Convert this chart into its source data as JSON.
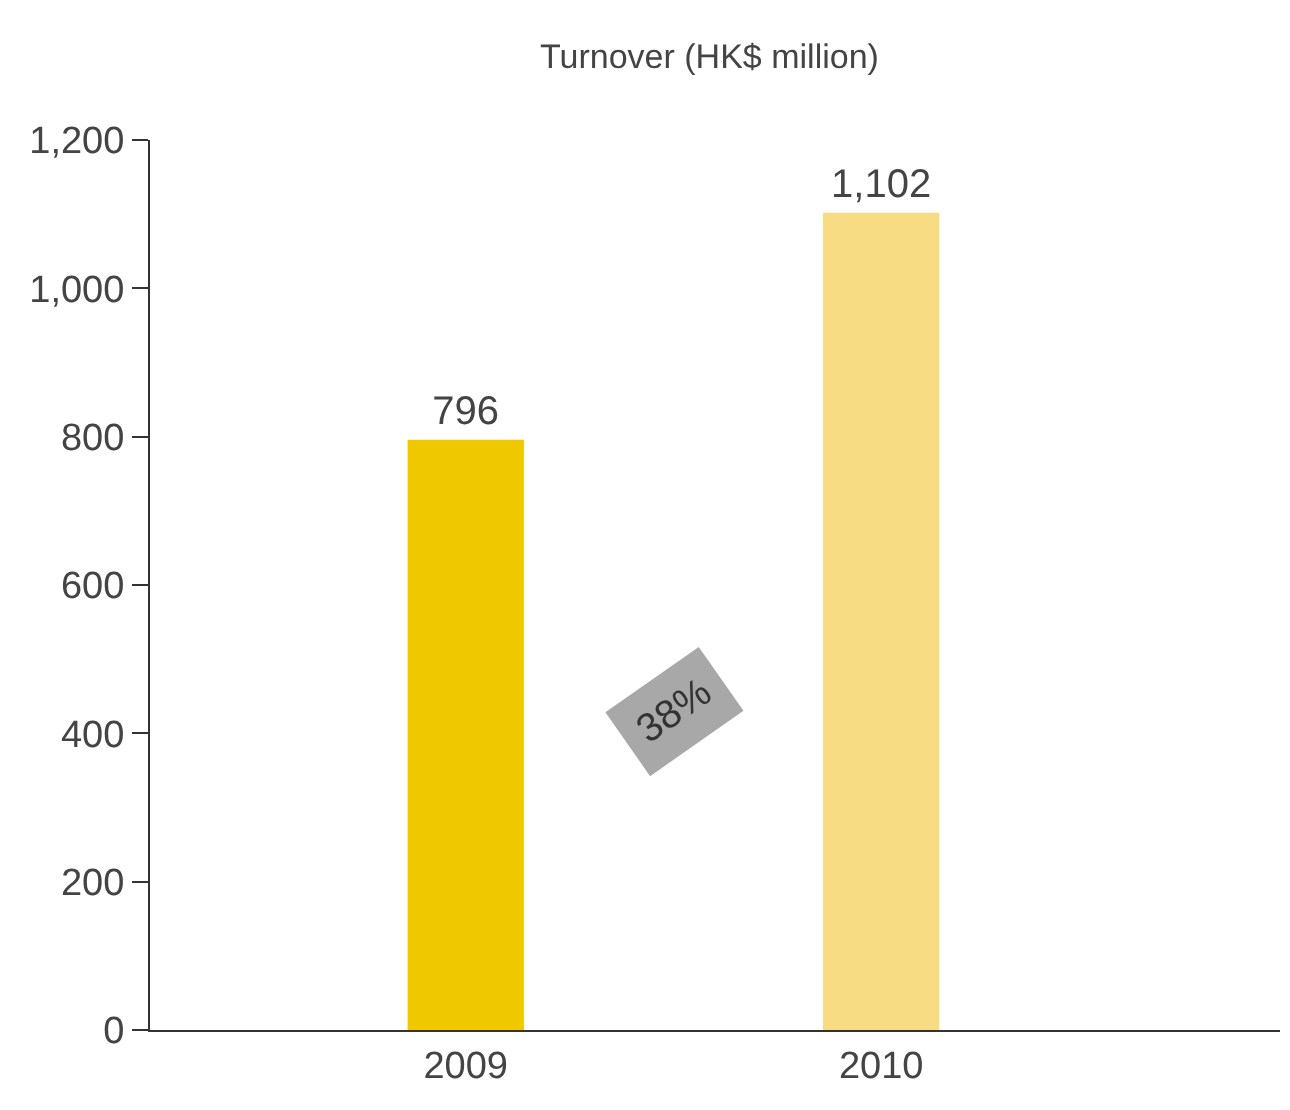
{
  "chart_data": {
    "type": "bar",
    "title": "Turnover (HK$ million)",
    "categories": [
      "2009",
      "2010"
    ],
    "values": [
      796,
      1102
    ],
    "colors": [
      "#f0c800",
      "#f7dc84"
    ],
    "value_labels": [
      "796",
      "1,102"
    ],
    "ylim": [
      0,
      1200
    ],
    "yticks": [
      0,
      200,
      400,
      600,
      800,
      {
        "value": 1000,
        "label": "1,000"
      },
      {
        "value": 1200,
        "label": "1,200"
      }
    ],
    "annotations": [
      "38%"
    ]
  }
}
